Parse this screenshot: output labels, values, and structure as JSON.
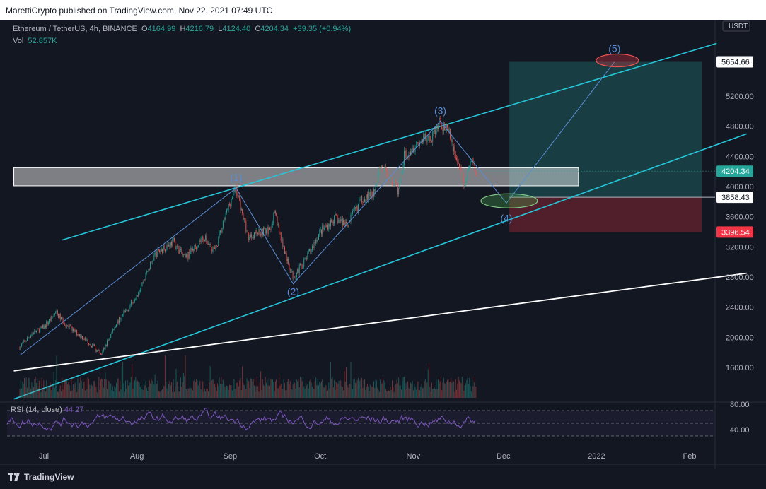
{
  "header": {
    "published_text": "MarettiCrypto published on TradingView.com, Nov 22, 2021 07:49 UTC"
  },
  "legend": {
    "symbol": "Ethereum / TetherUS, 4h, BINANCE",
    "open_label": "O",
    "open": "4164.99",
    "high_label": "H",
    "high": "4216.79",
    "low_label": "L",
    "low": "4124.40",
    "close_label": "C",
    "close": "4204.34",
    "change": "+39.35 (+0.94%)",
    "vol_label": "Vol",
    "vol": "52.857K"
  },
  "rsi": {
    "label": "RSI (14, close)",
    "value": "44.27"
  },
  "footer": {
    "brand": "TradingView"
  },
  "colors": {
    "background": "#131722",
    "up": "#26a69a",
    "down": "#ef5350",
    "channel": "#26c6da",
    "wave": "#5b8dd6",
    "rsi": "#7e57c2",
    "trend": "#ffffff"
  },
  "chart_data": {
    "type": "candlestick",
    "symbol": "ETHUSDT",
    "interval": "4h",
    "currency_label": "USDT",
    "y_ticks": [
      "5200.00",
      "4800.00",
      "4400.00",
      "4000.00",
      "3600.00",
      "3200.00",
      "2800.00",
      "2400.00",
      "2000.00",
      "1600.00"
    ],
    "x_ticks": [
      "Jul",
      "Aug",
      "Sep",
      "Oct",
      "Nov",
      "Dec",
      "2022",
      "Feb"
    ],
    "rsi_ticks": [
      "80.00",
      "40.00"
    ],
    "price_badges": [
      {
        "label": "5654.66",
        "value": 5654.66,
        "color": "#ffffff",
        "text_color": "#131722"
      },
      {
        "label": "4204.34",
        "value": 4204.34,
        "color": "#26a69a",
        "text_color": "#ffffff"
      },
      {
        "label": "3858.43",
        "value": 3858.43,
        "color": "#ffffff",
        "text_color": "#131722"
      },
      {
        "label": "3396.54",
        "value": 3396.54,
        "color": "#f23645",
        "text_color": "#ffffff"
      }
    ],
    "price_path": [
      [
        "2021-06-23",
        1870
      ],
      [
        "2021-06-27",
        2050
      ],
      [
        "2021-07-01",
        2130
      ],
      [
        "2021-07-05",
        2330
      ],
      [
        "2021-07-09",
        2140
      ],
      [
        "2021-07-13",
        2030
      ],
      [
        "2021-07-17",
        1900
      ],
      [
        "2021-07-20",
        1760
      ],
      [
        "2021-07-25",
        2180
      ],
      [
        "2021-07-29",
        2380
      ],
      [
        "2021-08-02",
        2650
      ],
      [
        "2021-08-07",
        3100
      ],
      [
        "2021-08-13",
        3270
      ],
      [
        "2021-08-17",
        3040
      ],
      [
        "2021-08-23",
        3330
      ],
      [
        "2021-08-27",
        3150
      ],
      [
        "2021-09-01",
        3800
      ],
      [
        "2021-09-03",
        3980
      ],
      [
        "2021-09-07",
        3330
      ],
      [
        "2021-09-10",
        3400
      ],
      [
        "2021-09-14",
        3420
      ],
      [
        "2021-09-16",
        3640
      ],
      [
        "2021-09-20",
        3000
      ],
      [
        "2021-09-22",
        2800
      ],
      [
        "2021-09-26",
        3020
      ],
      [
        "2021-10-01",
        3400
      ],
      [
        "2021-10-06",
        3580
      ],
      [
        "2021-10-10",
        3500
      ],
      [
        "2021-10-15",
        3850
      ],
      [
        "2021-10-19",
        3900
      ],
      [
        "2021-10-21",
        4300
      ],
      [
        "2021-10-27",
        3940
      ],
      [
        "2021-10-29",
        4420
      ],
      [
        "2021-11-03",
        4600
      ],
      [
        "2021-11-07",
        4650
      ],
      [
        "2021-11-10",
        4868
      ],
      [
        "2021-11-13",
        4680
      ],
      [
        "2021-11-16",
        4300
      ],
      [
        "2021-11-18",
        4000
      ],
      [
        "2021-11-20",
        4350
      ],
      [
        "2021-11-22",
        4204
      ]
    ],
    "wave_labels": [
      {
        "label": "(1)",
        "date": "2021-09-03",
        "price": 3980
      },
      {
        "label": "(2)",
        "date": "2021-09-22",
        "price": 2710
      },
      {
        "label": "(3)",
        "date": "2021-11-10",
        "price": 4868
      },
      {
        "label": "(4)",
        "date": "2021-12-02",
        "price": 3780
      },
      {
        "label": "(5)",
        "date": "2022-01-07",
        "price": 5654.66
      }
    ],
    "zone": {
      "from": "2021-06-21",
      "to": "2021-12-26",
      "top": 4250,
      "bottom": 4010
    },
    "position": {
      "from": "2021-12-03",
      "to": "2022-02-05",
      "entry": 3858.43,
      "target": 5654.66,
      "stop": 3396.54
    },
    "channel_upper": [
      [
        "2021-07-07",
        3290
      ],
      [
        "2022-02-10",
        5900
      ]
    ],
    "channel_lower": [
      [
        "2021-06-21",
        1180
      ],
      [
        "2022-02-20",
        4700
      ]
    ],
    "long_trend": [
      [
        "2021-06-21",
        1555
      ],
      [
        "2022-02-20",
        2850
      ]
    ],
    "rsi_levels": [
      70,
      50,
      30
    ]
  }
}
